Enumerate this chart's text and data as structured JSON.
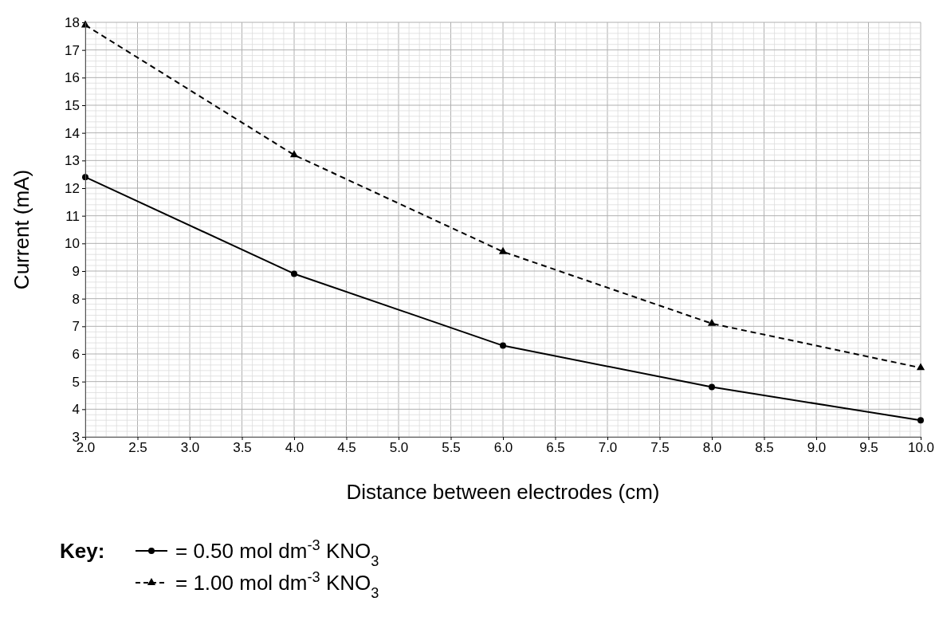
{
  "chart_data": {
    "type": "line",
    "xlabel": "Distance between electrodes (cm)",
    "ylabel": "Current (mA)",
    "x": [
      2,
      4,
      6,
      8,
      10
    ],
    "series": [
      {
        "name": "= 0.50 mol dm$^{-3}$ KNO$_{3}$",
        "color": "#000000",
        "values": [
          12.4,
          8.9,
          6.3,
          4.8,
          3.6
        ],
        "marker": "circle",
        "line_style": "solid"
      },
      {
        "name": "= 1.00 mol dm$^{-3}$ KNO$_{3}$",
        "color": "#000000",
        "values": [
          17.9,
          13.2,
          9.7,
          7.1,
          5.5
        ],
        "marker": "triangle",
        "line_style": "dashed"
      }
    ],
    "xlim": [
      2,
      10
    ],
    "ylim": [
      3,
      18
    ],
    "xticks": [
      {
        "value": 2,
        "label": "2.0"
      },
      {
        "value": 2.5,
        "label": "2.5"
      },
      {
        "value": 3,
        "label": "3.0"
      },
      {
        "value": 3.5,
        "label": "3.5"
      },
      {
        "value": 4,
        "label": "4.0"
      },
      {
        "value": 4.5,
        "label": "4.5"
      },
      {
        "value": 5,
        "label": "5.0"
      },
      {
        "value": 5.5,
        "label": "5.5"
      },
      {
        "value": 6,
        "label": "6.0"
      },
      {
        "value": 6.5,
        "label": "6.5"
      },
      {
        "value": 7,
        "label": "7.0"
      },
      {
        "value": 7.5,
        "label": "7.5"
      },
      {
        "value": 8,
        "label": "8.0"
      },
      {
        "value": 8.5,
        "label": "8.5"
      },
      {
        "value": 9,
        "label": "9.0"
      },
      {
        "value": 9.5,
        "label": "9.5"
      },
      {
        "value": 10,
        "label": "10.0"
      }
    ],
    "yticks": [
      3,
      4,
      5,
      6,
      7,
      8,
      9,
      10,
      11,
      12,
      13,
      14,
      15,
      16,
      17,
      18
    ],
    "grid": true,
    "legend": "bottom",
    "legend_title": "Key:"
  }
}
